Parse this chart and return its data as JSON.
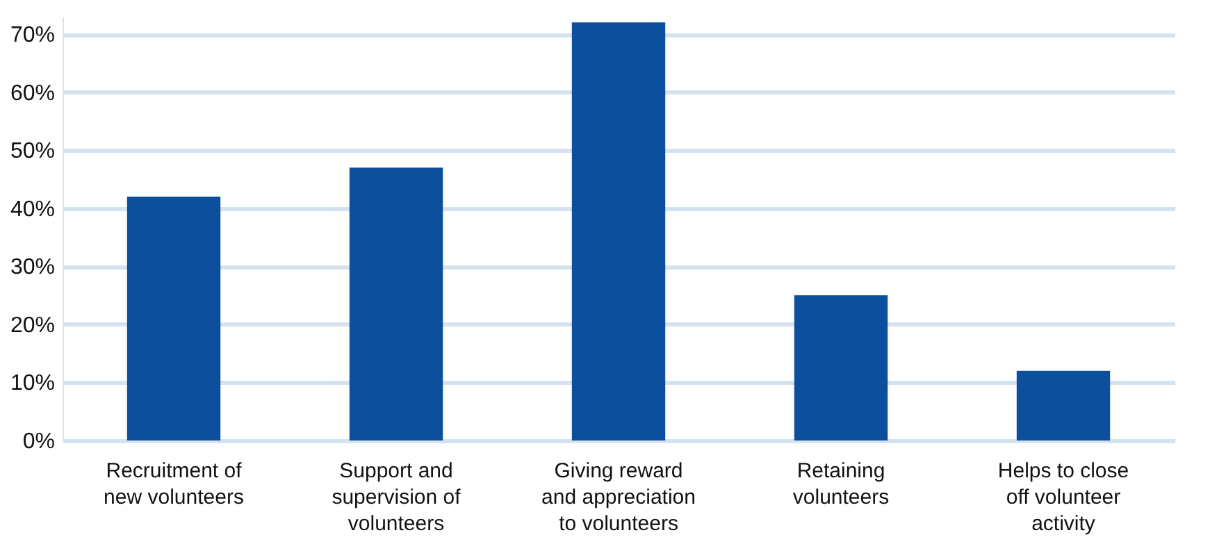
{
  "chart_data": {
    "type": "bar",
    "categories": [
      "Recruitment of new volunteers",
      "Support and supervision of volunteers",
      "Giving reward and appreciation to volunteers",
      "Retaining volunteers",
      "Helps to close off volunteer activity"
    ],
    "values": [
      42,
      47,
      72,
      25,
      12
    ],
    "color": "#0c4f9c",
    "ylim": [
      0,
      73
    ],
    "yticks": [
      {
        "value": 0,
        "label": "0%"
      },
      {
        "value": 10,
        "label": "10%"
      },
      {
        "value": 20,
        "label": "20%"
      },
      {
        "value": 30,
        "label": "30%"
      },
      {
        "value": 40,
        "label": "40%"
      },
      {
        "value": 50,
        "label": "50%"
      },
      {
        "value": 60,
        "label": "60%"
      },
      {
        "value": 70,
        "label": "70%"
      }
    ],
    "grid": "y"
  }
}
